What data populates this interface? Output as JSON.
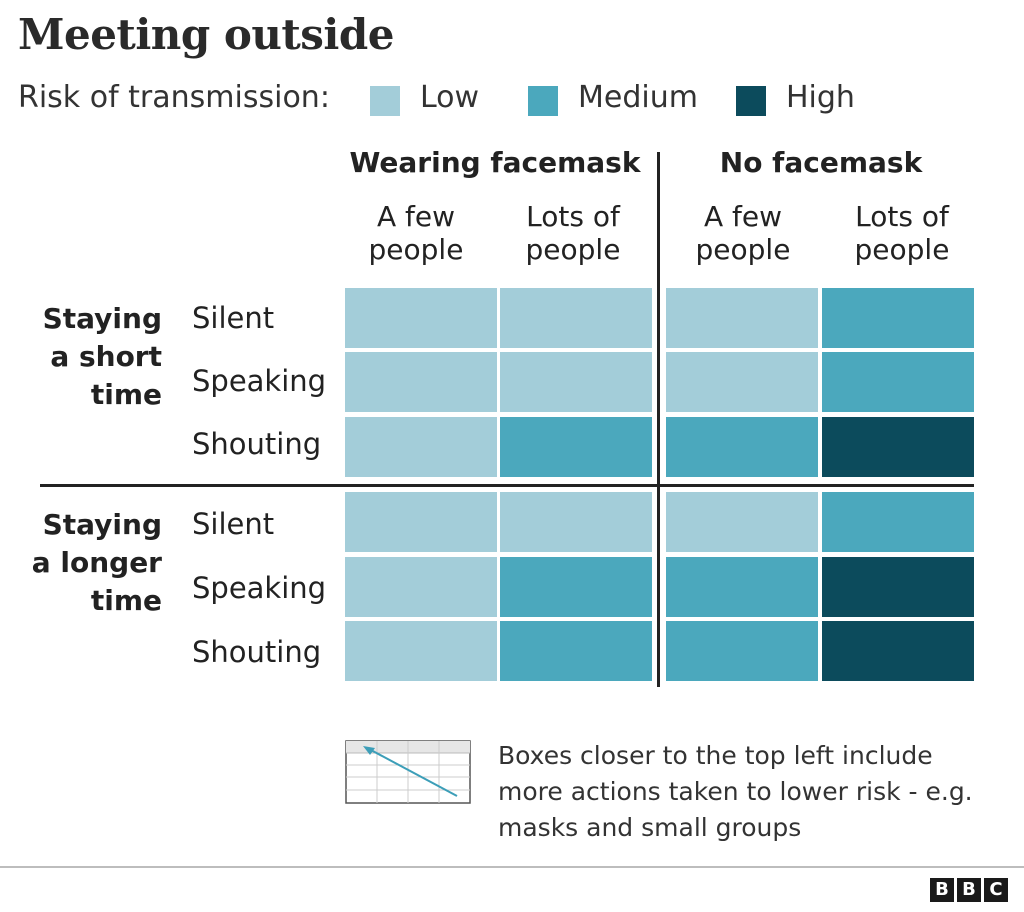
{
  "title": "Meeting outside",
  "legend": {
    "label": "Risk of transmission:",
    "items": [
      {
        "label": "Low",
        "color": "#a3cdd9"
      },
      {
        "label": "Medium",
        "color": "#4ba8bd"
      },
      {
        "label": "High",
        "color": "#0c4b5c"
      }
    ]
  },
  "chart_data": {
    "type": "heatmap",
    "title": "Meeting outside",
    "column_groups": [
      {
        "label": "Wearing facemask",
        "columns": [
          "A few people",
          "Lots of people"
        ]
      },
      {
        "label": "No facemask",
        "columns": [
          "A few people",
          "Lots of people"
        ]
      }
    ],
    "row_groups": [
      {
        "label": "Staying a short time",
        "rows": [
          "Silent",
          "Speaking",
          "Shouting"
        ]
      },
      {
        "label": "Staying a longer time",
        "rows": [
          "Silent",
          "Speaking",
          "Shouting"
        ]
      }
    ],
    "levels": [
      "Low",
      "Medium",
      "High"
    ],
    "values": [
      [
        "Low",
        "Low",
        "Low",
        "Medium"
      ],
      [
        "Low",
        "Low",
        "Low",
        "Medium"
      ],
      [
        "Low",
        "Medium",
        "Medium",
        "High"
      ],
      [
        "Low",
        "Low",
        "Low",
        "Medium"
      ],
      [
        "Low",
        "Medium",
        "Medium",
        "High"
      ],
      [
        "Low",
        "Medium",
        "Medium",
        "High"
      ]
    ],
    "colors": {
      "Low": "#a3cdd9",
      "Medium": "#4ba8bd",
      "High": "#0c4b5c"
    }
  },
  "headers": {
    "group_masked": "Wearing facemask",
    "group_unmasked": "No facemask",
    "col_few": "A few people",
    "col_lots": "Lots of people"
  },
  "rows": {
    "short_group": [
      "Staying",
      "a short",
      "time"
    ],
    "long_group": [
      "Staying",
      "a longer",
      "time"
    ],
    "activities": [
      "Silent",
      "Speaking",
      "Shouting"
    ]
  },
  "note": {
    "text": "Boxes closer to the top left include more actions taken to lower risk - e.g. masks and small groups"
  },
  "footer": {
    "logo_letters": [
      "B",
      "B",
      "C"
    ]
  }
}
